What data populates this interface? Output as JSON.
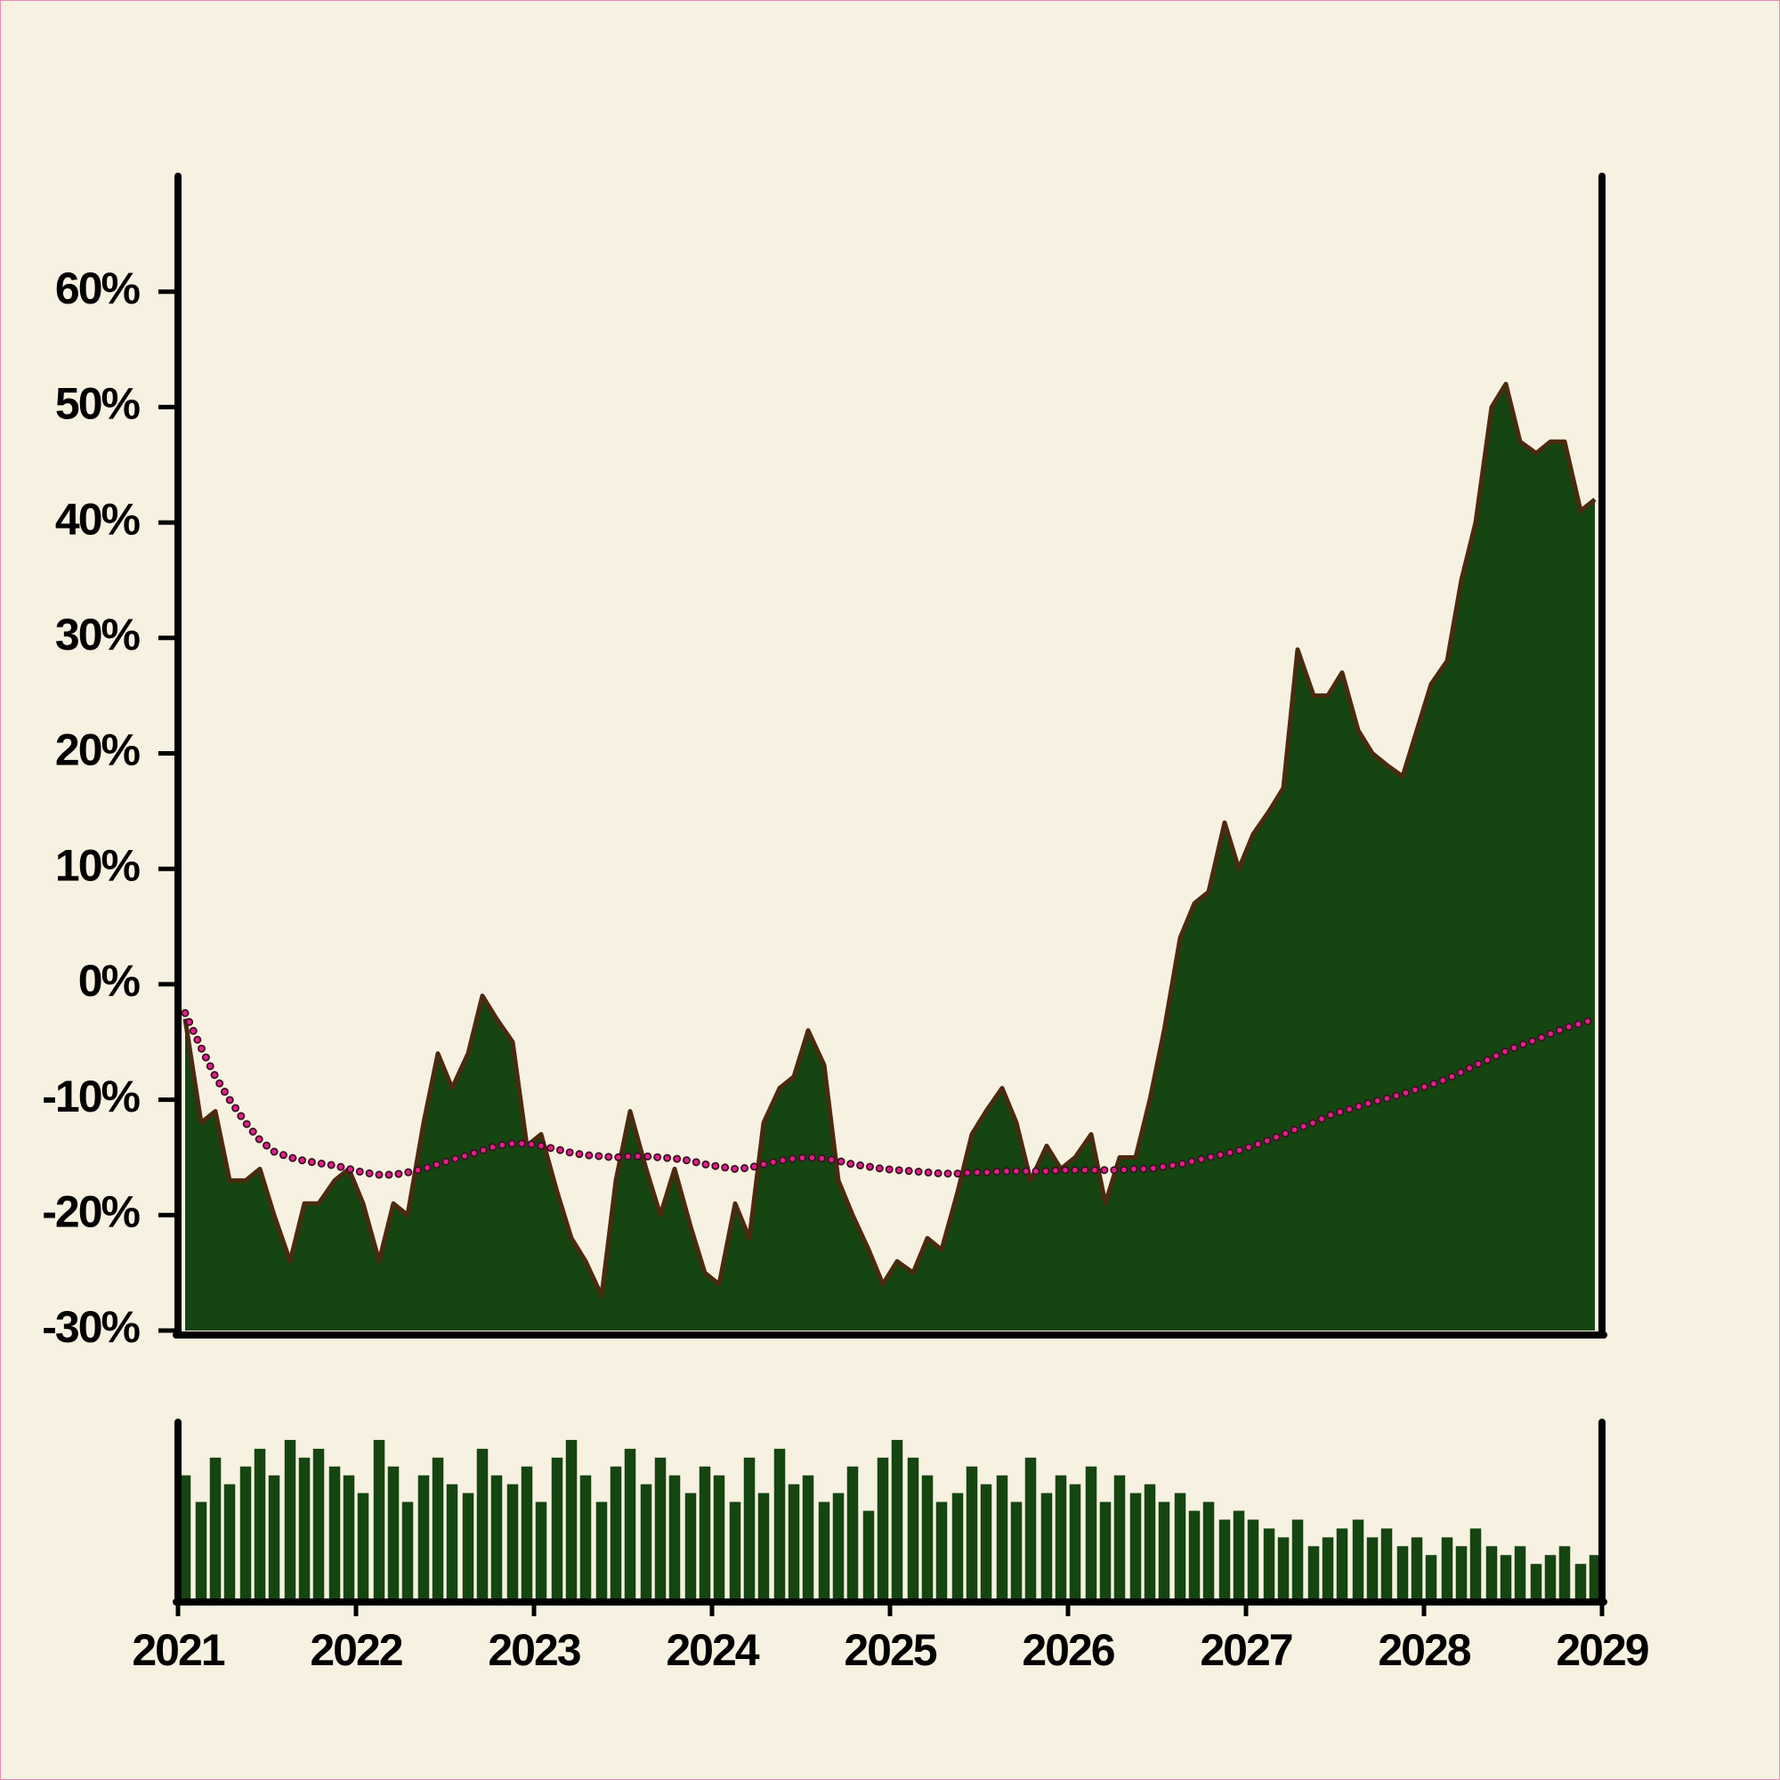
{
  "chart_data": [
    {
      "type": "area",
      "x": [
        2021.04,
        2021.13,
        2021.21,
        2021.29,
        2021.38,
        2021.46,
        2021.54,
        2021.63,
        2021.71,
        2021.79,
        2021.88,
        2021.96,
        2022.04,
        2022.13,
        2022.21,
        2022.29,
        2022.38,
        2022.46,
        2022.54,
        2022.63,
        2022.71,
        2022.79,
        2022.88,
        2022.96,
        2023.04,
        2023.13,
        2023.21,
        2023.29,
        2023.38,
        2023.46,
        2023.54,
        2023.63,
        2023.71,
        2023.79,
        2023.88,
        2023.96,
        2024.04,
        2024.13,
        2024.21,
        2024.29,
        2024.38,
        2024.46,
        2024.54,
        2024.63,
        2024.71,
        2024.79,
        2024.88,
        2024.96,
        2025.04,
        2025.13,
        2025.21,
        2025.29,
        2025.38,
        2025.46,
        2025.54,
        2025.63,
        2025.71,
        2025.79,
        2025.88,
        2025.96,
        2026.04,
        2026.13,
        2026.21,
        2026.29,
        2026.38,
        2026.46,
        2026.54,
        2026.63,
        2026.71,
        2026.79,
        2026.88,
        2026.96,
        2027.04,
        2027.13,
        2027.21,
        2027.29,
        2027.38,
        2027.46,
        2027.54,
        2027.63,
        2027.71,
        2027.79,
        2027.88,
        2027.96,
        2028.04,
        2028.13,
        2028.21,
        2028.29,
        2028.38,
        2028.46,
        2028.54,
        2028.63,
        2028.71,
        2028.79,
        2028.88,
        2028.96
      ],
      "series": [
        {
          "color": "#154511",
          "line_color": "#4a2a10",
          "values": [
            -3,
            -12,
            -11,
            -17,
            -17,
            -16,
            -20,
            -24,
            -19,
            -19,
            -17,
            -16,
            -19,
            -24,
            -19,
            -20,
            -12,
            -6,
            -9,
            -6,
            -1,
            -3,
            -5,
            -14,
            -13,
            -18,
            -22,
            -24,
            -27,
            -17,
            -11,
            -16,
            -20,
            -16,
            -21,
            -25,
            -26,
            -19,
            -22,
            -12,
            -9,
            -8,
            -4,
            -7,
            -17,
            -20,
            -23,
            -26,
            -24,
            -25,
            -22,
            -23,
            -18,
            -13,
            -11,
            -9,
            -12,
            -17,
            -14,
            -16,
            -15,
            -13,
            -19,
            -15,
            -15,
            -10,
            -4,
            4,
            7,
            8,
            14,
            10,
            13,
            15,
            17,
            29,
            25,
            25,
            27,
            22,
            20,
            19,
            18,
            22,
            26,
            28,
            35,
            40,
            50,
            52,
            47,
            46,
            47,
            47,
            41,
            42
          ]
        },
        {
          "style": "dotted",
          "color": "#e0208a",
          "values": [
            -2.5,
            -5.5,
            -8,
            -10,
            -12,
            -13.5,
            -14.5,
            -15,
            -15.3,
            -15.5,
            -15.7,
            -16,
            -16.3,
            -16.5,
            -16.5,
            -16.3,
            -16,
            -15.6,
            -15.2,
            -14.8,
            -14.4,
            -14,
            -13.8,
            -13.8,
            -14,
            -14.3,
            -14.6,
            -14.8,
            -14.9,
            -15,
            -14.9,
            -14.9,
            -15,
            -15.1,
            -15.3,
            -15.6,
            -15.8,
            -16,
            -15.9,
            -15.6,
            -15.3,
            -15.1,
            -15,
            -15.1,
            -15.3,
            -15.6,
            -15.8,
            -16,
            -16.1,
            -16.2,
            -16.3,
            -16.4,
            -16.4,
            -16.3,
            -16.3,
            -16.2,
            -16.2,
            -16.2,
            -16.2,
            -16.1,
            -16.1,
            -16.1,
            -16.1,
            -16.1,
            -16,
            -16,
            -15.8,
            -15.6,
            -15.3,
            -15,
            -14.7,
            -14.4,
            -14,
            -13.5,
            -13,
            -12.5,
            -12,
            -11.4,
            -11,
            -10.6,
            -10.2,
            -9.9,
            -9.5,
            -9.1,
            -8.7,
            -8.2,
            -7.6,
            -7,
            -6.4,
            -5.8,
            -5.3,
            -4.8,
            -4.3,
            -3.8,
            -3.4,
            -3
          ]
        }
      ],
      "xlim": [
        2021,
        2029
      ],
      "ylim": [
        -30,
        70
      ],
      "yticks": [
        {
          "value": -30,
          "label": "-30%"
        },
        {
          "value": -20,
          "label": "-20%"
        },
        {
          "value": -10,
          "label": "-10%"
        },
        {
          "value": 0,
          "label": "0%"
        },
        {
          "value": 10,
          "label": "10%"
        },
        {
          "value": 20,
          "label": "20%"
        },
        {
          "value": 30,
          "label": "30%"
        },
        {
          "value": 40,
          "label": "40%"
        },
        {
          "value": 50,
          "label": "50%"
        },
        {
          "value": 60,
          "label": "60%"
        }
      ]
    },
    {
      "type": "bar",
      "x": [
        2021.04,
        2021.13,
        2021.21,
        2021.29,
        2021.38,
        2021.46,
        2021.54,
        2021.63,
        2021.71,
        2021.79,
        2021.88,
        2021.96,
        2022.04,
        2022.13,
        2022.21,
        2022.29,
        2022.38,
        2022.46,
        2022.54,
        2022.63,
        2022.71,
        2022.79,
        2022.88,
        2022.96,
        2023.04,
        2023.13,
        2023.21,
        2023.29,
        2023.38,
        2023.46,
        2023.54,
        2023.63,
        2023.71,
        2023.79,
        2023.88,
        2023.96,
        2024.04,
        2024.13,
        2024.21,
        2024.29,
        2024.38,
        2024.46,
        2024.54,
        2024.63,
        2024.71,
        2024.79,
        2024.88,
        2024.96,
        2025.04,
        2025.13,
        2025.21,
        2025.29,
        2025.38,
        2025.46,
        2025.54,
        2025.63,
        2025.71,
        2025.79,
        2025.88,
        2025.96,
        2026.04,
        2026.13,
        2026.21,
        2026.29,
        2026.38,
        2026.46,
        2026.54,
        2026.63,
        2026.71,
        2026.79,
        2026.88,
        2026.96,
        2027.04,
        2027.13,
        2027.21,
        2027.29,
        2027.38,
        2027.46,
        2027.54,
        2027.63,
        2027.71,
        2027.79,
        2027.88,
        2027.96,
        2028.04,
        2028.13,
        2028.21,
        2028.29,
        2028.38,
        2028.46,
        2028.54,
        2028.63,
        2028.71,
        2028.79,
        2028.88,
        2028.96
      ],
      "values": [
        70,
        55,
        80,
        65,
        75,
        85,
        70,
        90,
        80,
        85,
        75,
        70,
        60,
        90,
        75,
        55,
        70,
        80,
        65,
        60,
        85,
        70,
        65,
        75,
        55,
        80,
        90,
        70,
        55,
        75,
        85,
        65,
        80,
        70,
        60,
        75,
        70,
        55,
        80,
        60,
        85,
        65,
        70,
        55,
        60,
        75,
        50,
        80,
        90,
        80,
        70,
        55,
        60,
        75,
        65,
        70,
        55,
        80,
        60,
        70,
        65,
        75,
        55,
        70,
        60,
        65,
        55,
        60,
        50,
        55,
        45,
        50,
        45,
        40,
        35,
        45,
        30,
        35,
        40,
        45,
        35,
        40,
        30,
        35,
        25,
        35,
        30,
        40,
        30,
        25,
        30,
        20,
        25,
        30,
        20,
        25
      ],
      "color": "#154511",
      "xlim": [
        2021,
        2029
      ],
      "ylim": [
        0,
        100
      ],
      "xticks": [
        2021,
        2022,
        2023,
        2024,
        2025,
        2026,
        2027,
        2028,
        2029
      ]
    }
  ]
}
